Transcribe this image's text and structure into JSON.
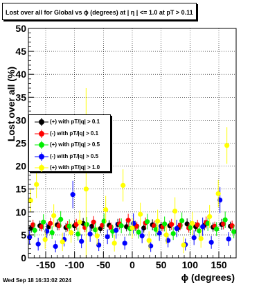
{
  "window": {
    "title": "Lost over all for Global vs ϕ (degrees) at | η | <= 1.0 at pT > 0.11",
    "timestamp": "Wed Sep 18 16:33:02 2024"
  },
  "chart_data": {
    "type": "scatter",
    "title": "Lost over all for Global vs ϕ (degrees) at | η | <= 1.0 at pT > 0.11",
    "xlabel": "ϕ (degrees)",
    "ylabel": "Lost over all (%)",
    "xlim": [
      -180,
      180
    ],
    "ylim": [
      0,
      50
    ],
    "xticks": [
      -150,
      -100,
      -50,
      0,
      50,
      100,
      150
    ],
    "yticks": [
      0,
      5,
      10,
      15,
      20,
      25,
      30,
      35,
      40,
      45,
      50
    ],
    "grid": true,
    "legend_position": "left-middle",
    "series": [
      {
        "name": "(+) with pT/|q| > 0.1",
        "color": "#000000",
        "x": [
          -175,
          -160,
          -145,
          -130,
          -115,
          -100,
          -85,
          -70,
          -55,
          -40,
          -25,
          -10,
          5,
          20,
          35,
          50,
          65,
          80,
          95,
          110,
          125,
          140,
          155,
          170
        ],
        "y": [
          6.5,
          7.0,
          6.8,
          7.2,
          6.6,
          7.0,
          7.5,
          6.9,
          6.4,
          7.1,
          7.3,
          6.8,
          7.0,
          6.5,
          7.2,
          6.9,
          7.0,
          6.6,
          7.4,
          6.8,
          7.1,
          6.7,
          7.3,
          6.9
        ],
        "err": [
          1.0,
          1.1,
          1.0,
          1.2,
          1.0,
          1.1,
          1.2,
          1.0,
          1.0,
          1.1,
          1.2,
          1.0,
          1.1,
          1.0,
          1.2,
          1.0,
          1.1,
          1.0,
          1.2,
          1.0,
          1.1,
          1.0,
          1.2,
          1.0
        ]
      },
      {
        "name": "(-) with pT/|q| > 0.1",
        "color": "#ff0000",
        "x": [
          -172,
          -157,
          -142,
          -127,
          -112,
          -97,
          -82,
          -67,
          -52,
          -37,
          -22,
          -7,
          8,
          23,
          38,
          53,
          68,
          83,
          98,
          113,
          128,
          143,
          158,
          173
        ],
        "y": [
          7.2,
          6.8,
          7.5,
          7.0,
          6.9,
          7.3,
          6.6,
          7.8,
          7.1,
          6.7,
          7.4,
          8.2,
          6.9,
          7.6,
          7.0,
          6.8,
          7.3,
          7.1,
          6.5,
          7.2,
          7.7,
          6.9,
          7.4,
          7.0
        ],
        "err": [
          1.1,
          1.0,
          1.2,
          1.0,
          1.1,
          1.2,
          1.0,
          1.3,
          1.1,
          1.0,
          1.2,
          1.4,
          1.0,
          1.2,
          1.1,
          1.0,
          1.2,
          1.1,
          1.0,
          1.1,
          1.3,
          1.0,
          1.2,
          1.1
        ]
      },
      {
        "name": "(+) with pT/|q| > 0.5",
        "color": "#00ee00",
        "x": [
          -169,
          -154,
          -139,
          -124,
          -109,
          -94,
          -79,
          -64,
          -49,
          -34,
          -19,
          -4,
          11,
          26,
          41,
          56,
          71,
          86,
          101,
          116,
          131,
          146,
          161,
          176
        ],
        "y": [
          6.0,
          7.8,
          5.5,
          8.4,
          6.9,
          5.2,
          7.3,
          6.1,
          8.0,
          5.8,
          7.0,
          6.4,
          5.6,
          7.9,
          6.2,
          7.4,
          5.3,
          8.1,
          6.6,
          5.9,
          7.5,
          6.3,
          8.3,
          5.7
        ],
        "err": [
          1.5,
          1.7,
          1.4,
          1.8,
          1.5,
          1.4,
          1.6,
          1.5,
          1.7,
          1.4,
          1.6,
          1.5,
          1.4,
          1.7,
          1.5,
          1.6,
          1.4,
          1.8,
          1.5,
          1.4,
          1.6,
          1.5,
          1.8,
          1.4
        ]
      },
      {
        "name": "(-) with pT/|q| > 0.5",
        "color": "#0000ff",
        "x": [
          -178,
          -163,
          -148,
          -133,
          -118,
          -103,
          -88,
          -73,
          -58,
          -43,
          -28,
          -13,
          2,
          17,
          32,
          47,
          62,
          77,
          92,
          107,
          122,
          137,
          152,
          167
        ],
        "y": [
          4.5,
          3.0,
          5.8,
          2.5,
          4.0,
          13.8,
          3.6,
          5.2,
          2.8,
          4.6,
          6.0,
          3.2,
          7.5,
          4.8,
          2.6,
          5.4,
          3.8,
          6.4,
          2.9,
          4.4,
          6.8,
          3.4,
          12.6,
          4.1
        ],
        "err": [
          1.6,
          1.4,
          1.8,
          1.3,
          1.5,
          3.0,
          1.5,
          1.7,
          1.3,
          1.6,
          1.8,
          1.4,
          2.2,
          1.6,
          1.3,
          1.7,
          1.5,
          1.9,
          1.3,
          1.6,
          2.0,
          1.4,
          2.8,
          1.5
        ]
      },
      {
        "name": "(+) with pT/|q| > 1.0",
        "color": "#ffff00",
        "x": [
          -176,
          -166,
          -151,
          -136,
          -121,
          -106,
          -91,
          -80,
          -61,
          -46,
          -31,
          -16,
          0,
          14,
          29,
          44,
          59,
          74,
          89,
          104,
          119,
          134,
          149,
          164
        ],
        "y": [
          12.5,
          16.0,
          4.0,
          9.2,
          3.5,
          5.5,
          7.8,
          15.0,
          4.8,
          10.5,
          3.2,
          15.8,
          6.5,
          9.5,
          3.8,
          8.0,
          5.0,
          10.2,
          2.8,
          7.5,
          4.2,
          9.0,
          14.0,
          24.5
        ],
        "err": [
          2.5,
          3.0,
          2.0,
          2.5,
          2.0,
          2.2,
          2.5,
          22.0,
          2.0,
          3.0,
          1.8,
          3.5,
          2.2,
          2.5,
          2.0,
          2.5,
          2.0,
          3.0,
          1.8,
          2.5,
          2.0,
          2.5,
          3.0,
          4.0
        ]
      }
    ]
  }
}
